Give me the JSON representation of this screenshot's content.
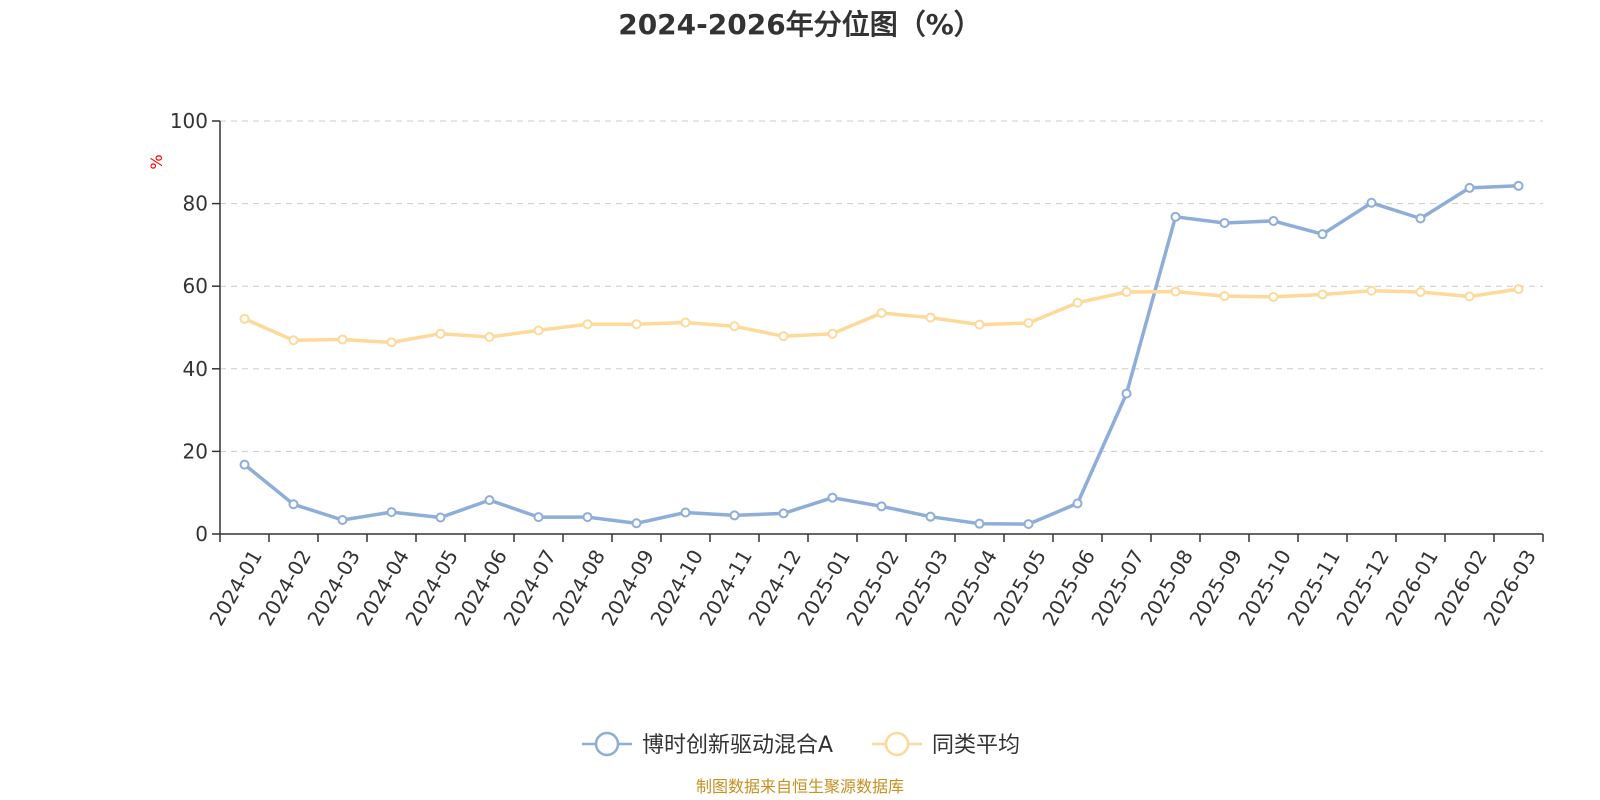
{
  "chart_data": {
    "type": "line",
    "title": "2024-2026年分位图（%）",
    "ylabel": "%",
    "ylim": [
      0,
      100
    ],
    "yticks": [
      0,
      20,
      40,
      60,
      80,
      100
    ],
    "grid": true,
    "legend_position": "bottom-center",
    "categories": [
      "2024-01",
      "2024-02",
      "2024-03",
      "2024-04",
      "2024-05",
      "2024-06",
      "2024-07",
      "2024-08",
      "2024-09",
      "2024-10",
      "2024-11",
      "2024-12",
      "2025-01",
      "2025-02",
      "2025-03",
      "2025-04",
      "2025-05",
      "2025-06",
      "2025-07",
      "2025-08",
      "2025-09",
      "2025-10",
      "2025-11",
      "2025-12",
      "2026-01",
      "2026-02",
      "2026-03"
    ],
    "series": [
      {
        "name": "博时创新驱动混合A",
        "color": "#8eadd9",
        "values": [
          16.8,
          7.2,
          3.4,
          5.3,
          4.0,
          8.2,
          4.1,
          4.1,
          2.6,
          5.2,
          4.5,
          5.0,
          8.8,
          6.7,
          4.2,
          2.5,
          2.4,
          7.4,
          34.0,
          76.8,
          75.3,
          75.8,
          72.6,
          80.2,
          76.4,
          83.8,
          84.3
        ]
      },
      {
        "name": "同类平均",
        "color": "#fdd99a",
        "values": [
          52.1,
          46.9,
          47.1,
          46.4,
          48.5,
          47.7,
          49.3,
          50.8,
          50.8,
          51.2,
          50.3,
          47.9,
          48.5,
          53.5,
          52.4,
          50.7,
          51.1,
          56.0,
          58.6,
          58.7,
          57.6,
          57.4,
          58.0,
          58.9,
          58.6,
          57.5,
          59.3
        ]
      }
    ],
    "axis_color": "#333333",
    "grid_color": "#cccccc",
    "unit_color": "#ff0000"
  },
  "source": {
    "text": "制图数据来自恒生聚源数据库",
    "color": "#c8901e"
  }
}
